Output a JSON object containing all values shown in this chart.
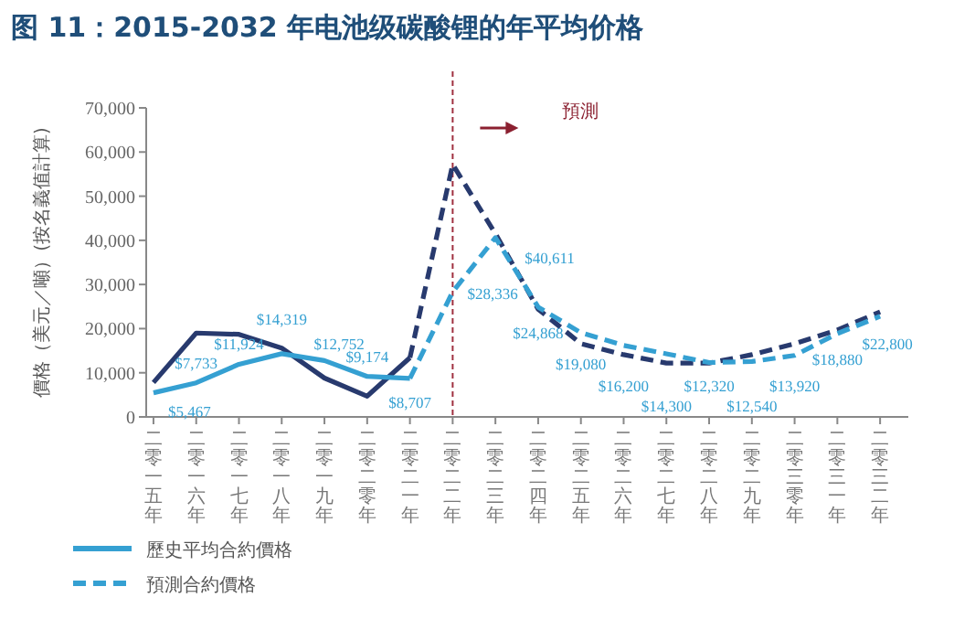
{
  "chart_data": {
    "type": "line",
    "title": "图 11：2015-2032 年电池级碳酸锂的年平均价格",
    "ylabel": "價格（美元／噸）(按名義值計算)",
    "categories": [
      "二零一五年",
      "二零一六年",
      "二零一七年",
      "二零一八年",
      "二零一九年",
      "二零二零年",
      "二零二一年",
      "二零二二年",
      "二零二三年",
      "二零二四年",
      "二零二五年",
      "二零二六年",
      "二零二七年",
      "二零二八年",
      "二零二九年",
      "二零三零年",
      "二零三一年",
      "二零三二年"
    ],
    "ylim": [
      0,
      70000
    ],
    "yticks": [
      0,
      {
        "value": 10000,
        "label": "10,000"
      },
      {
        "value": 20000,
        "label": "20,000"
      },
      {
        "value": 30000,
        "label": "30,000"
      },
      {
        "value": 40000,
        "label": "40,000"
      },
      {
        "value": 50000,
        "label": "50,000"
      },
      {
        "value": 60000,
        "label": "60,000"
      },
      {
        "value": 70000,
        "label": "70,000"
      }
    ],
    "series": [
      {
        "color": "#283a6e",
        "line_style": "solid",
        "values": [
          7800,
          19000,
          18700,
          15600,
          8800,
          4700,
          13400,
          null,
          null,
          null,
          null,
          null,
          null,
          null,
          null,
          null,
          null,
          null
        ]
      },
      {
        "color": "#283a6e",
        "line_style": "dashed",
        "values": [
          null,
          null,
          null,
          null,
          null,
          null,
          13400,
          57200,
          41500,
          24400,
          16600,
          14100,
          12200,
          12200,
          14100,
          16600,
          19700,
          23800
        ]
      },
      {
        "name": "歷史平均合約價格",
        "color": "#35a0d2",
        "line_style": "solid",
        "values": [
          5467,
          7733,
          11924,
          14319,
          12752,
          9174,
          8707,
          null,
          null,
          null,
          null,
          null,
          null,
          null,
          null,
          null,
          null,
          null
        ],
        "value_labels": [
          "$5,467",
          "$7,733",
          "$11,924",
          "$14,319",
          "$12,752",
          "$9,174",
          "$8,707",
          null,
          null,
          null,
          null,
          null,
          null,
          null,
          null,
          null,
          null,
          null
        ]
      },
      {
        "name": "預測合約價格",
        "color": "#35a0d2",
        "line_style": "dashed",
        "values": [
          null,
          null,
          null,
          null,
          null,
          null,
          8707,
          28336,
          40611,
          24868,
          19080,
          16200,
          14300,
          12320,
          12540,
          13920,
          18880,
          22800
        ],
        "value_labels": [
          null,
          null,
          null,
          null,
          null,
          null,
          null,
          "$28,336",
          "$40,611",
          "$24,868",
          "$19,080",
          "$16,200",
          "$14,300",
          "$12,320",
          "$12,540",
          "$13,920",
          "$18,880",
          "$22,800"
        ]
      }
    ],
    "ref_lines": [
      {
        "axis": "x",
        "value": "二零二二年",
        "color": "#a03040",
        "line_style": "dashed"
      }
    ],
    "annotations": [
      "預測"
    ],
    "legend": "bottom left"
  }
}
